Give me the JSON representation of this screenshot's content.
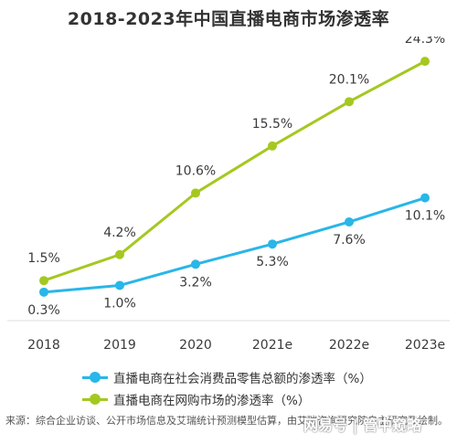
{
  "title": "2018-2023年中国直播电商市场渗透率",
  "chart_data": {
    "type": "line",
    "title": "2018-2023年中国直播电商市场渗透率",
    "categories": [
      "2018",
      "2019",
      "2020",
      "2021e",
      "2022e",
      "2023e"
    ],
    "series": [
      {
        "name": "直播电商在社会消费品零售总额的渗透率（%）",
        "color": "#29b6e8",
        "values": [
          0.3,
          1.0,
          3.2,
          5.3,
          7.6,
          10.1
        ],
        "labels": [
          "0.3%",
          "1.0%",
          "3.2%",
          "5.3%",
          "7.6%",
          "10.1%"
        ]
      },
      {
        "name": "直播电商在网购市场的渗透率（%）",
        "color": "#a5c820",
        "values": [
          1.5,
          4.2,
          10.6,
          15.5,
          20.1,
          24.3
        ],
        "labels": [
          "1.5%",
          "4.2%",
          "10.6%",
          "15.5%",
          "20.1%",
          "24.3%"
        ]
      }
    ],
    "ylim": [
      0,
      26
    ],
    "grid": false,
    "legend_position": "bottom"
  },
  "source": "来源：综合企业访谈、公开市场信息及艾瑞统计预测模型估算，由艾瑞咨询研究院自主研究及绘制。",
  "watermark": "网易号 | 管中窥略"
}
